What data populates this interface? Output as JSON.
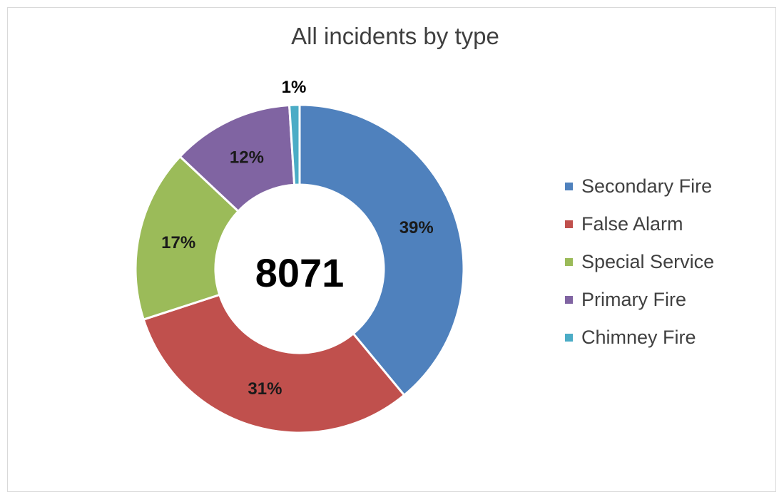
{
  "chart_data": {
    "type": "pie",
    "variant": "donut",
    "title": "All incidents by type",
    "center_label": "8071",
    "legend_position": "right",
    "slices": [
      {
        "label": "Secondary Fire",
        "value": 39,
        "data_label": "39%",
        "color": "#4f81bd"
      },
      {
        "label": "False Alarm",
        "value": 31,
        "data_label": "31%",
        "color": "#c0504d"
      },
      {
        "label": "Special Service",
        "value": 17,
        "data_label": "17%",
        "color": "#9bbb59"
      },
      {
        "label": "Primary Fire",
        "value": 12,
        "data_label": "12%",
        "color": "#8064a2"
      },
      {
        "label": "Chimney Fire",
        "value": 1,
        "data_label": "1%",
        "color": "#4bacc6"
      }
    ]
  }
}
